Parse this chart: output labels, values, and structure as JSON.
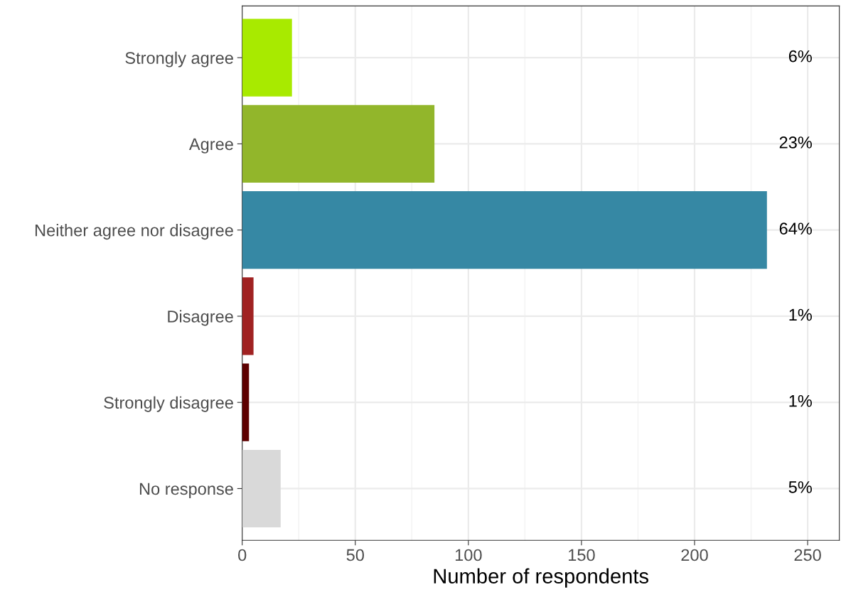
{
  "chart_data": {
    "type": "bar",
    "orientation": "horizontal",
    "xlabel": "Number of respondents",
    "categories": [
      "Strongly agree",
      "Agree",
      "Neither agree nor disagree",
      "Disagree",
      "Strongly disagree",
      "No response"
    ],
    "values": [
      22,
      85,
      232,
      5,
      3,
      17
    ],
    "colors": [
      "#a8ea00",
      "#92b62b",
      "#3688a4",
      "#a02222",
      "#5e0000",
      "#d9d9d9"
    ],
    "annotations": [
      "6%",
      "23%",
      "64%",
      "1%",
      "1%",
      "5%"
    ],
    "xlim": [
      0,
      264
    ],
    "xticks": [
      0,
      50,
      100,
      150,
      200,
      250
    ],
    "grid": true
  }
}
